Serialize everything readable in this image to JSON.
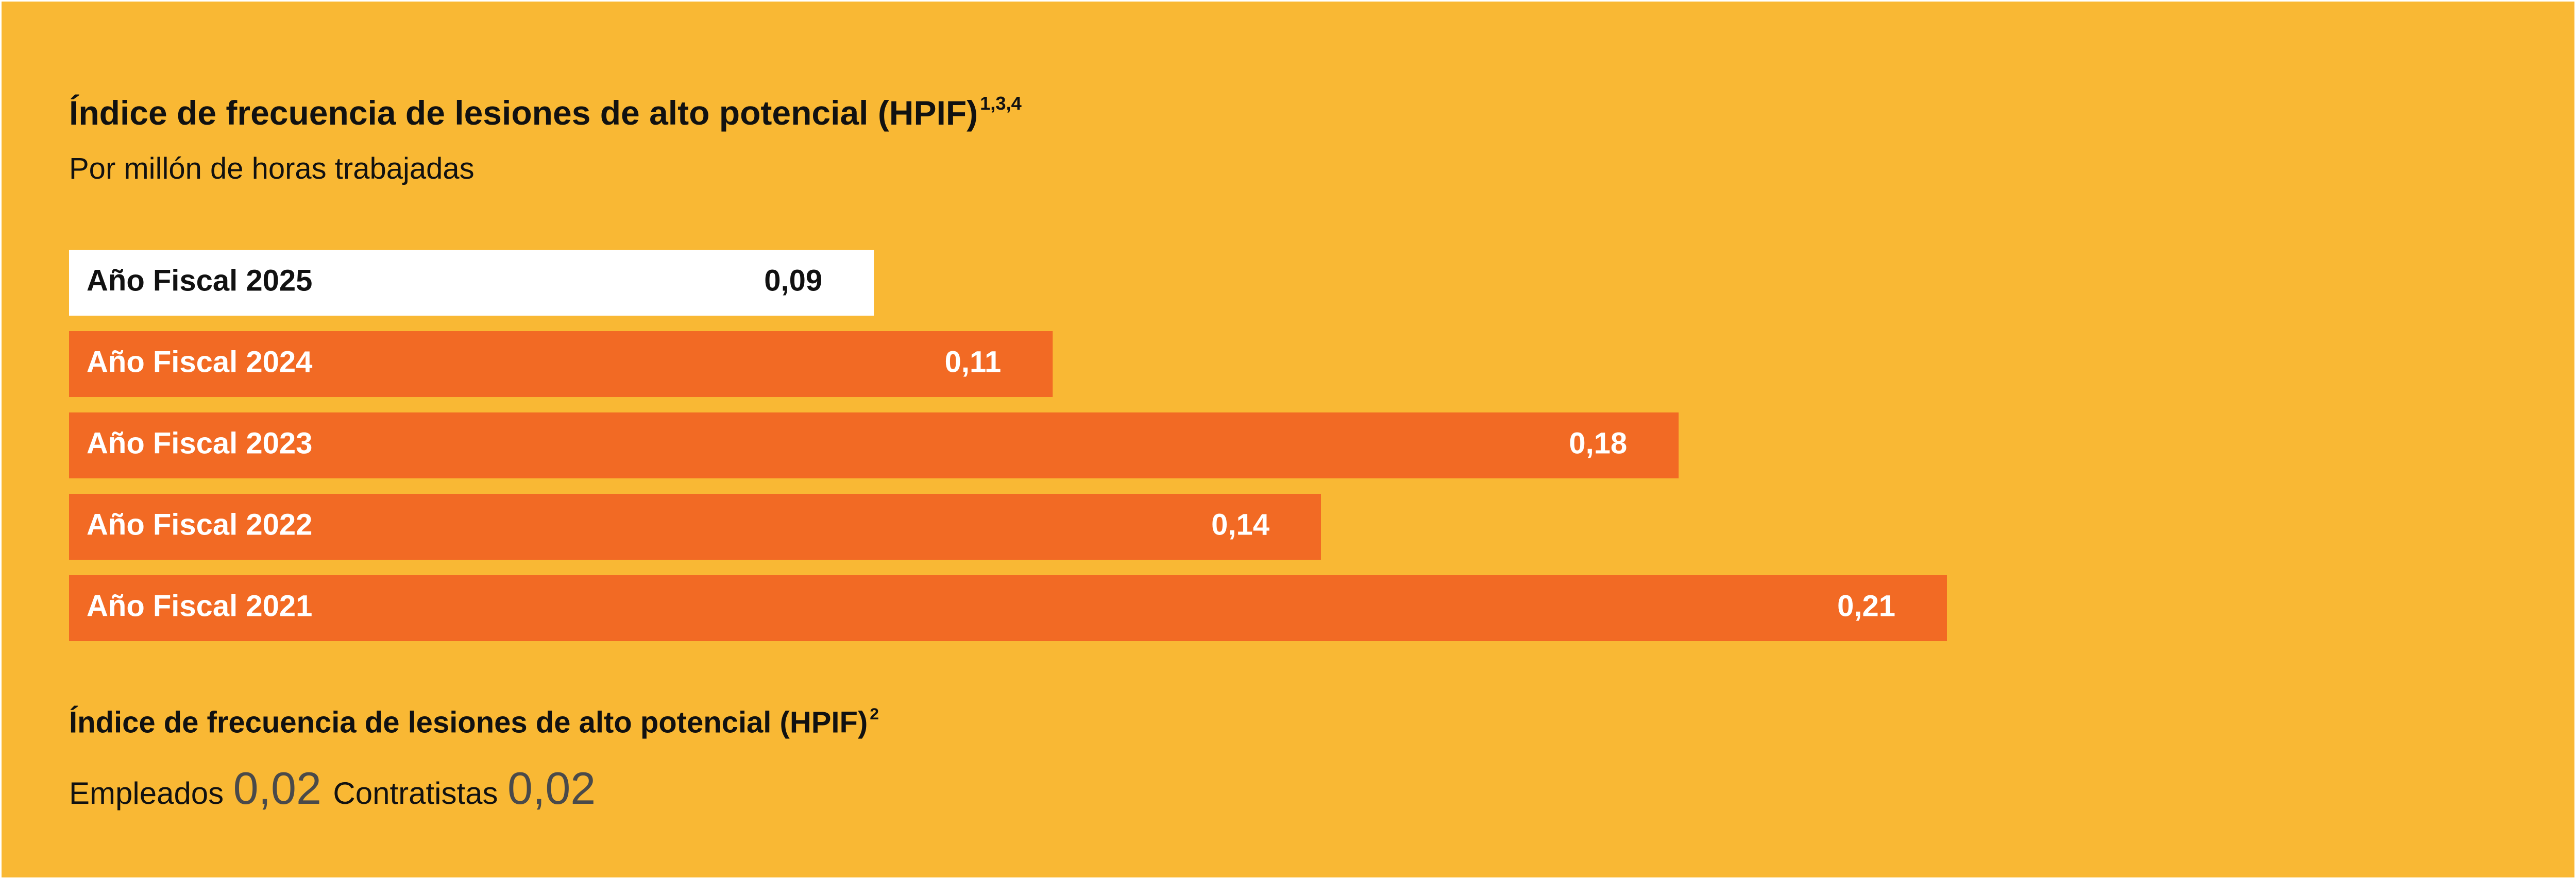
{
  "chart_data": {
    "type": "bar",
    "orientation": "horizontal",
    "title": "Índice de frecuencia de lesiones de alto potencial (HPIF)",
    "title_superscript": "1,3,4",
    "subtitle": "Por millón de horas trabajadas",
    "categories": [
      "Año Fiscal 2025",
      "Año Fiscal 2024",
      "Año Fiscal 2023",
      "Año Fiscal 2022",
      "Año Fiscal 2021"
    ],
    "values": [
      0.09,
      0.11,
      0.18,
      0.14,
      0.21
    ],
    "value_labels": [
      "0,09",
      "0,11",
      "0,18",
      "0,14",
      "0,21"
    ],
    "xlim": [
      0,
      0.21
    ],
    "grid": false,
    "colors": {
      "background": "#F9B834",
      "bar": "#F26A24",
      "highlight_bar": "#FFFFFF",
      "bar_text": "#FFFFFF",
      "highlight_text": "#111111"
    }
  },
  "secondary": {
    "title": "Índice de frecuencia de lesiones de alto potencial (HPIF)",
    "title_superscript": "2",
    "stats": [
      {
        "label": "Empleados",
        "value": "0,02"
      },
      {
        "label": "Contratistas",
        "value": "0,02"
      }
    ]
  }
}
